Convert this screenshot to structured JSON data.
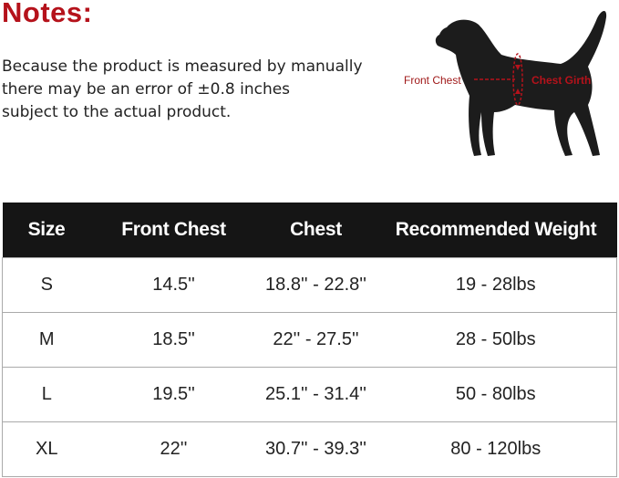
{
  "notes": {
    "title": "Notes:",
    "lines": [
      "Because the product is measured by manually",
      "there may be an error of ±0.8 inches",
      "subject to the actual product."
    ]
  },
  "diagram": {
    "front_chest_label": "Front Chest",
    "chest_girth_label": "Chest Girth",
    "accent_color": "#b5121b"
  },
  "table": {
    "headers": [
      "Size",
      "Front Chest",
      "Chest",
      "Recommended Weight"
    ],
    "rows": [
      [
        "S",
        "14.5''",
        "18.8'' - 22.8''",
        "19 - 28lbs"
      ],
      [
        "M",
        "18.5''",
        "22'' - 27.5''",
        "28 - 50lbs"
      ],
      [
        "L",
        "19.5''",
        "25.1'' - 31.4''",
        "50 - 80lbs"
      ],
      [
        "XL",
        "22''",
        "30.7'' - 39.3''",
        "80 - 120lbs"
      ]
    ]
  }
}
